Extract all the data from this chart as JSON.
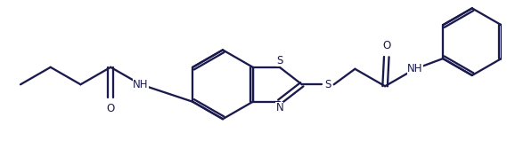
{
  "bg": "#ffffff",
  "lc": "#1a1a4e",
  "lw": 1.65,
  "fs": 8.5,
  "figsize": [
    5.69,
    1.85
  ],
  "dpi": 100,
  "xlim": [
    0,
    10
  ],
  "ylim": [
    0,
    3.3
  ]
}
